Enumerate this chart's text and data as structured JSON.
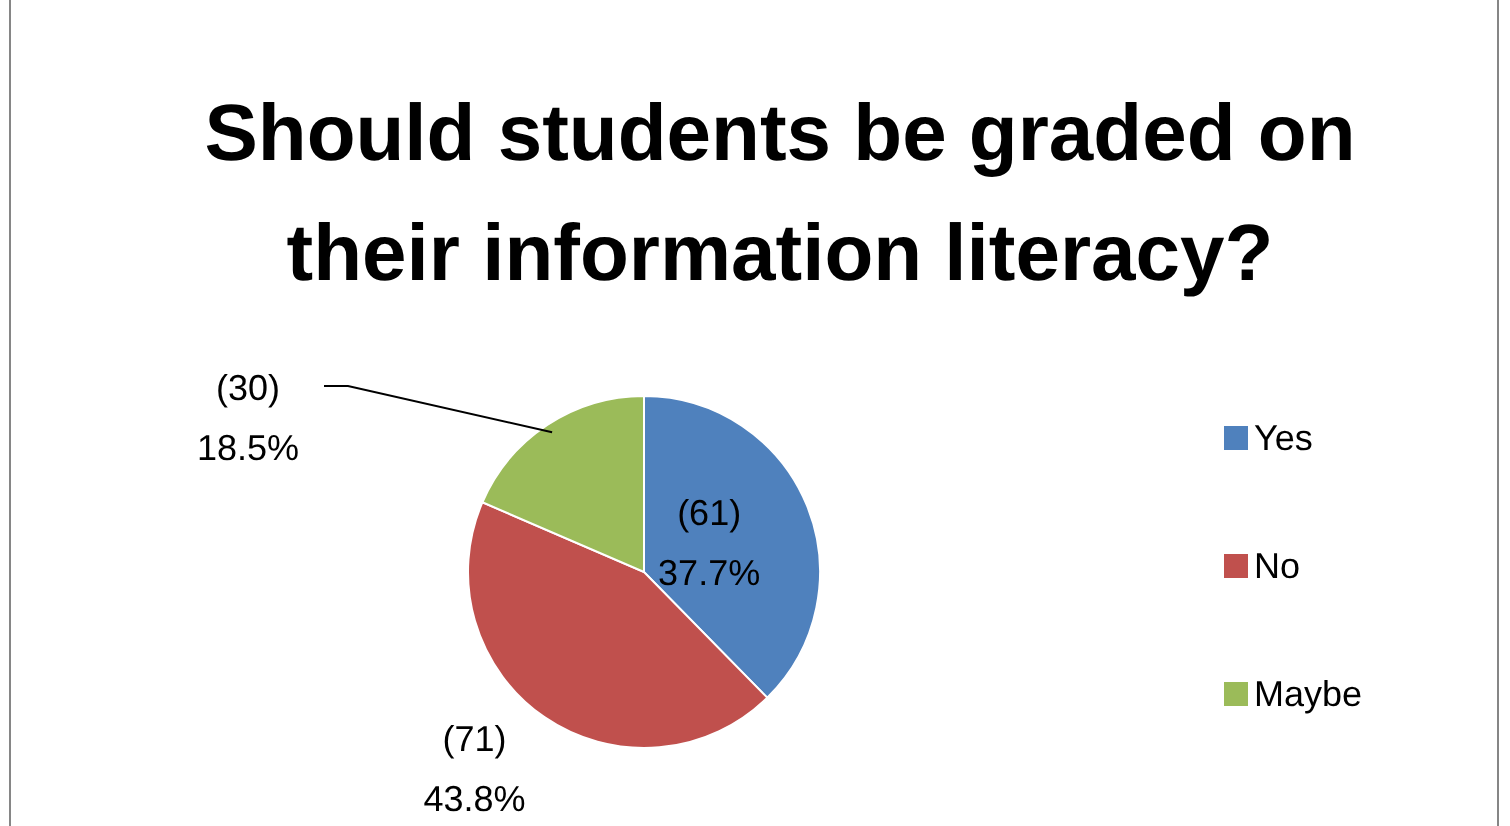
{
  "chart_data": {
    "type": "pie",
    "title": "Should students be graded on their information literacy?",
    "categories": [
      "Yes",
      "No",
      "Maybe"
    ],
    "values": [
      61,
      71,
      30
    ],
    "colors": [
      "#4f81bd",
      "#c0504d",
      "#9bbb59"
    ],
    "value_labels": [
      "(61)\n37.7%",
      "(71)\n43.8%",
      "(30)\n18.5%"
    ],
    "legend": "right"
  }
}
